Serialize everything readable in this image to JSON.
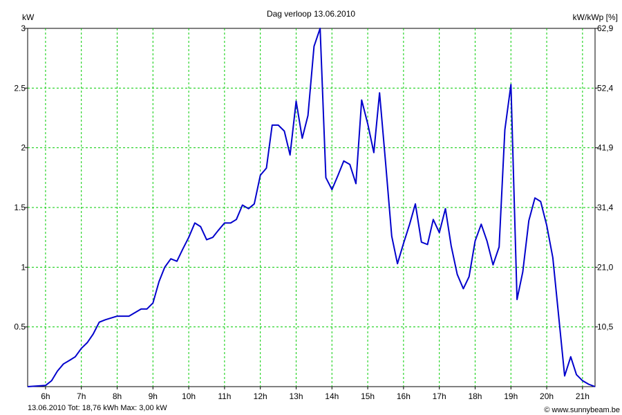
{
  "chart_data": {
    "type": "line",
    "title": "Dag  verloop 13.06.2010",
    "y_left_unit": "kW",
    "y_right_unit": "kW/kWp [%]",
    "ylim": [
      0,
      3
    ],
    "xlim": [
      5.5,
      21.35
    ],
    "grid": true,
    "y_left_ticks": [
      "0.5",
      "1",
      "1.5",
      "2",
      "2.5",
      "3"
    ],
    "y_left_tick_values": [
      0.5,
      1,
      1.5,
      2,
      2.5,
      3
    ],
    "y_right_ticks": [
      "10,5",
      "21,0",
      "31,4",
      "41,9",
      "52,4",
      "62,9"
    ],
    "x_ticks": [
      "6h",
      "7h",
      "8h",
      "9h",
      "10h",
      "11h",
      "12h",
      "13h",
      "14h",
      "15h",
      "16h",
      "17h",
      "18h",
      "19h",
      "20h",
      "21h"
    ],
    "x_tick_values": [
      6,
      7,
      8,
      9,
      10,
      11,
      12,
      13,
      14,
      15,
      16,
      17,
      18,
      19,
      20,
      21
    ],
    "series": [
      {
        "color": "#0000cc",
        "x": [
          5.5,
          6.0,
          6.17,
          6.33,
          6.5,
          6.67,
          6.83,
          7.0,
          7.17,
          7.33,
          7.5,
          7.67,
          8.0,
          8.33,
          8.67,
          8.83,
          9.0,
          9.17,
          9.33,
          9.5,
          9.67,
          9.83,
          10.0,
          10.17,
          10.33,
          10.5,
          10.67,
          10.83,
          11.0,
          11.17,
          11.33,
          11.5,
          11.67,
          11.83,
          12.0,
          12.17,
          12.33,
          12.5,
          12.67,
          12.83,
          13.0,
          13.17,
          13.33,
          13.5,
          13.67,
          13.83,
          14.0,
          14.17,
          14.33,
          14.5,
          14.67,
          14.83,
          15.0,
          15.17,
          15.33,
          15.5,
          15.67,
          15.83,
          16.0,
          16.17,
          16.33,
          16.5,
          16.67,
          16.83,
          17.0,
          17.17,
          17.33,
          17.5,
          17.67,
          17.83,
          18.0,
          18.17,
          18.33,
          18.5,
          18.67,
          18.83,
          19.0,
          19.17,
          19.33,
          19.5,
          19.67,
          19.83,
          20.0,
          20.17,
          20.33,
          20.5,
          20.67,
          20.83,
          21.0,
          21.17,
          21.35
        ],
        "y": [
          0.0,
          0.01,
          0.05,
          0.13,
          0.19,
          0.22,
          0.25,
          0.32,
          0.37,
          0.44,
          0.54,
          0.56,
          0.59,
          0.59,
          0.65,
          0.65,
          0.7,
          0.88,
          1.0,
          1.07,
          1.05,
          1.15,
          1.25,
          1.37,
          1.34,
          1.23,
          1.25,
          1.31,
          1.37,
          1.37,
          1.4,
          1.52,
          1.49,
          1.53,
          1.77,
          1.83,
          2.19,
          2.19,
          2.14,
          1.94,
          2.39,
          2.08,
          2.27,
          2.85,
          3.0,
          1.75,
          1.65,
          1.77,
          1.89,
          1.86,
          1.7,
          2.4,
          2.2,
          1.96,
          2.46,
          1.87,
          1.26,
          1.03,
          1.2,
          1.36,
          1.53,
          1.21,
          1.19,
          1.4,
          1.29,
          1.49,
          1.18,
          0.94,
          0.82,
          0.92,
          1.22,
          1.36,
          1.22,
          1.02,
          1.17,
          2.15,
          2.53,
          0.73,
          0.96,
          1.39,
          1.58,
          1.55,
          1.35,
          1.08,
          0.6,
          0.09,
          0.25,
          0.1,
          0.05,
          0.02,
          0.0
        ]
      }
    ]
  },
  "footer": {
    "summary": "13.06.2010 Tot: 18,76 kWh Max: 3,00 kW",
    "credit": "© www.sunnybeam.be"
  },
  "colors": {
    "line": "#0000cc",
    "grid": "#00cc00",
    "summary_text": "#0000cc"
  }
}
